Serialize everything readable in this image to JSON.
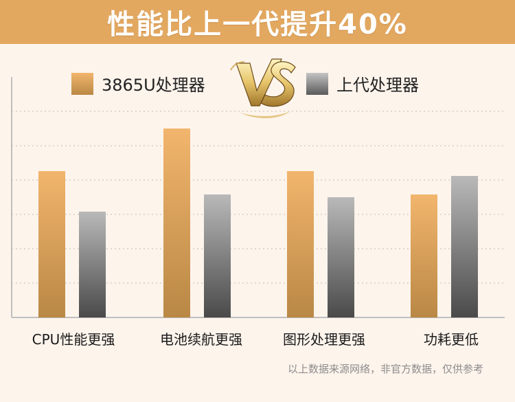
{
  "banner": {
    "title": "性能比上一代提升40%"
  },
  "colors": {
    "banner_bg": "#e3a860",
    "page_bg": "#fdf4ec",
    "series_new_top": "#f2b56d",
    "series_new_bottom": "#b98845",
    "series_old_top": "#b9b9b9",
    "series_old_bottom": "#4a4a4a",
    "vs_gold": "#e6c46a"
  },
  "vs_emblem": {
    "icon": "vs-emblem-icon"
  },
  "footnote": "以上数据来源网络，非官方数据，仅供参考",
  "chart_data": {
    "type": "bar",
    "title": "性能比上一代提升40%",
    "categories": [
      "CPU性能更强",
      "电池续航更强",
      "图形处理更强",
      "功耗更低"
    ],
    "series": [
      {
        "name": "3865U处理器",
        "values": [
          213,
          275,
          213,
          179
        ]
      },
      {
        "name": "上代处理器",
        "values": [
          154,
          179,
          175,
          206
        ]
      }
    ],
    "xlabel": "",
    "ylabel": "",
    "ylim": [
      0,
      350
    ],
    "grid": true,
    "legend": "top"
  }
}
